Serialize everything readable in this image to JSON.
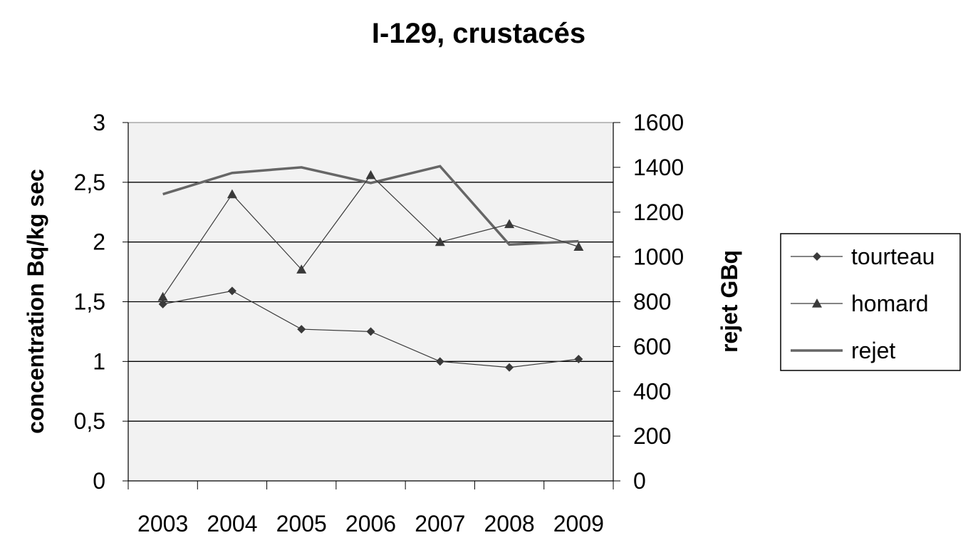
{
  "chart_data": {
    "type": "line",
    "title": "I-129, crustacés",
    "ylabel_left": "concentration Bq/kg sec",
    "ylabel_right": "rejet GBq",
    "categories": [
      "2003",
      "2004",
      "2005",
      "2006",
      "2007",
      "2008",
      "2009"
    ],
    "y_left_ticks": [
      "0",
      "0,5",
      "1",
      "1,5",
      "2",
      "2,5",
      "3"
    ],
    "y_left_range": [
      0,
      3
    ],
    "y_right_ticks": [
      "0",
      "200",
      "400",
      "600",
      "800",
      "1000",
      "1200",
      "1400",
      "1600"
    ],
    "y_right_range": [
      0,
      1600
    ],
    "grid": true,
    "legend_position": "right",
    "series": [
      {
        "name": "tourteau",
        "axis": "left",
        "marker": "diamond",
        "color": "#3a3a3a",
        "values": [
          1.48,
          1.59,
          1.27,
          1.25,
          1.0,
          0.95,
          1.02
        ]
      },
      {
        "name": "homard",
        "axis": "left",
        "marker": "triangle",
        "color": "#3a3a3a",
        "values": [
          1.54,
          2.4,
          1.77,
          2.56,
          2.0,
          2.15,
          1.96
        ]
      },
      {
        "name": "rejet",
        "axis": "right",
        "marker": "none",
        "color": "#666666",
        "values": [
          1280,
          1375,
          1400,
          1330,
          1405,
          1055,
          1070
        ]
      }
    ]
  }
}
